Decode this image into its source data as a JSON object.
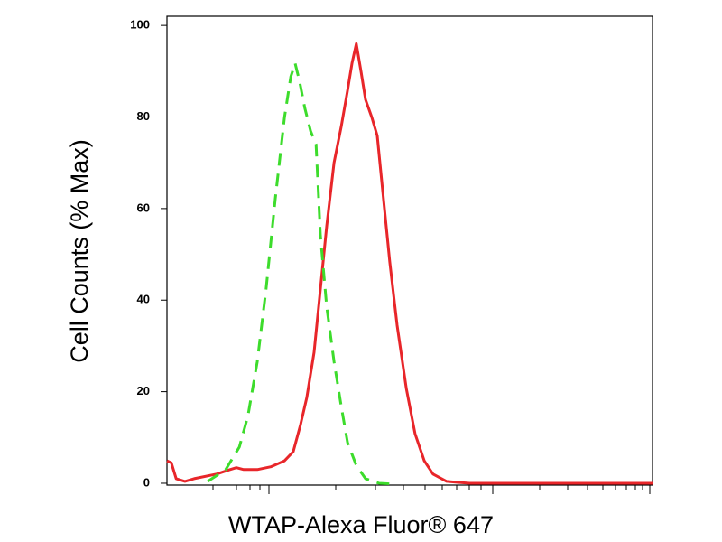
{
  "chart_data": {
    "type": "line",
    "y_label": "Cell Counts (% Max)",
    "x_label": "WTAP-Alexa Fluor® 647",
    "xlim": [
      0,
      1000
    ],
    "ylim": [
      -0.4,
      102
    ],
    "yticks": [
      0,
      20,
      40,
      60,
      80,
      100
    ],
    "series": [
      {
        "color": "#e8262a",
        "dash": false,
        "x": [
          0,
          9,
          19,
          37,
          56,
          102,
          130,
          143,
          158,
          186,
          214,
          242,
          260,
          275,
          288,
          303,
          316,
          329,
          344,
          359,
          372,
          381,
          390,
          400,
          409,
          422,
          433,
          446,
          459,
          474,
          493,
          511,
          530,
          548,
          576,
          623,
          1000
        ],
        "values": [
          4.9,
          4.5,
          1,
          0.4,
          1,
          2,
          3,
          3.4,
          3,
          3,
          3.6,
          4.9,
          6.9,
          12.8,
          18.7,
          28.6,
          42.4,
          56.2,
          70,
          77.9,
          85.8,
          91.7,
          96,
          89.7,
          83.8,
          79.9,
          75.9,
          62.1,
          48.3,
          34.5,
          20.7,
          10.8,
          4.9,
          2,
          0.4,
          0,
          0
        ]
      },
      {
        "color": "#3ddc2c",
        "dash": true,
        "x": [
          84,
          121,
          149,
          167,
          186,
          204,
          223,
          242,
          255,
          264,
          273,
          284,
          296,
          307,
          316,
          329,
          344,
          359,
          372,
          390,
          409,
          437,
          474
        ],
        "values": [
          0.4,
          3,
          7.9,
          14.8,
          26.6,
          42.4,
          62.1,
          79.9,
          88.8,
          91.7,
          87.8,
          81.9,
          76.9,
          74,
          54.2,
          38.5,
          26.6,
          16.8,
          8.9,
          3.9,
          1,
          0,
          -0.2
        ]
      }
    ]
  }
}
